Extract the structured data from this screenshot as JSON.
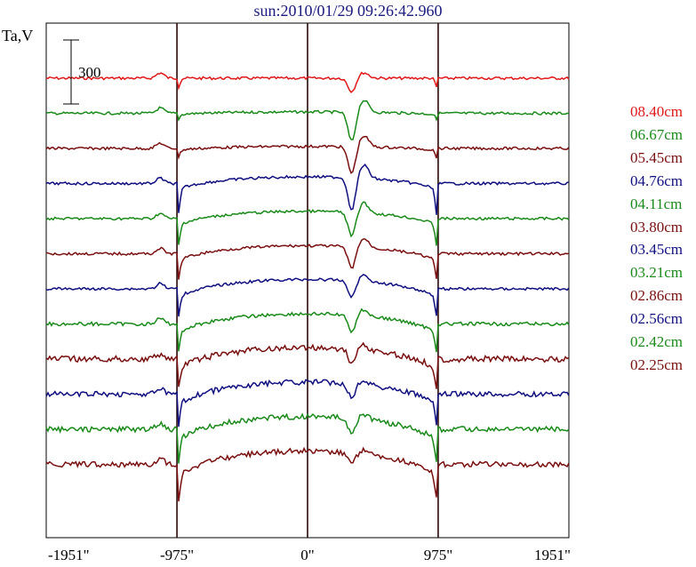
{
  "chart_data": {
    "type": "line",
    "title": "sun:2010/01/29 09:26:42.960",
    "ylabel": "Ta,V",
    "xlabel": "",
    "x_ticks": [
      "-1951\"",
      "-975\"",
      "0\"",
      "975\"",
      "1951\""
    ],
    "x_tick_values": [
      -1951,
      -975,
      0,
      975,
      1951
    ],
    "xlim": [
      -1951,
      1951
    ],
    "vertical_lines": [
      -975,
      0,
      975
    ],
    "scale_bar_label": "300",
    "scale_bar_value": 300,
    "grid": false,
    "legend_position": "right",
    "series": [
      {
        "name": "08.40cm",
        "color": "#e01818",
        "level": 0.0,
        "depth": 0,
        "limb_dip": 20,
        "ar_dip": 25,
        "noise": 3
      },
      {
        "name": "06.67cm",
        "color": "#1a8a1a",
        "level": 1.0,
        "depth": 10,
        "limb_dip": 10,
        "ar_dip": 55,
        "noise": 3
      },
      {
        "name": "05.45cm",
        "color": "#7a0f0f",
        "level": 2.0,
        "depth": 15,
        "limb_dip": 15,
        "ar_dip": 50,
        "noise": 3
      },
      {
        "name": "04.76cm",
        "color": "#0f0f80",
        "level": 3.0,
        "depth": 50,
        "limb_dip": 55,
        "ar_dip": 60,
        "noise": 3
      },
      {
        "name": "04.11cm",
        "color": "#1a8a1a",
        "level": 4.0,
        "depth": 55,
        "limb_dip": 45,
        "ar_dip": 45,
        "noise": 3
      },
      {
        "name": "03.80cm",
        "color": "#7a0f0f",
        "level": 5.0,
        "depth": 60,
        "limb_dip": 40,
        "ar_dip": 40,
        "noise": 3
      },
      {
        "name": "03.45cm",
        "color": "#0f0f80",
        "level": 6.0,
        "depth": 70,
        "limb_dip": 40,
        "ar_dip": 30,
        "noise": 3
      },
      {
        "name": "03.21cm",
        "color": "#1a8a1a",
        "level": 7.0,
        "depth": 75,
        "limb_dip": 40,
        "ar_dip": 30,
        "noise": 4
      },
      {
        "name": "02.86cm",
        "color": "#7a0f0f",
        "level": 8.0,
        "depth": 85,
        "limb_dip": 40,
        "ar_dip": 25,
        "noise": 7
      },
      {
        "name": "02.56cm",
        "color": "#0f0f80",
        "level": 9.0,
        "depth": 90,
        "limb_dip": 45,
        "ar_dip": 25,
        "noise": 6
      },
      {
        "name": "02.42cm",
        "color": "#1a8a1a",
        "level": 10.0,
        "depth": 95,
        "limb_dip": 45,
        "ar_dip": 25,
        "noise": 6
      },
      {
        "name": "02.25cm",
        "color": "#7a0f0f",
        "level": 11.0,
        "depth": 100,
        "limb_dip": 50,
        "ar_dip": 20,
        "noise": 6
      }
    ]
  }
}
